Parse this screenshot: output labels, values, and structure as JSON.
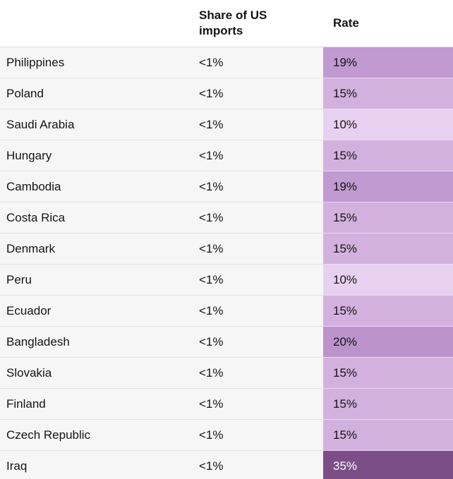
{
  "header": {
    "country_label": "",
    "share_label": "Share of US imports",
    "rate_label": "Rate"
  },
  "rows": [
    {
      "country": "Philippines",
      "share": "<1%",
      "rate": "19%"
    },
    {
      "country": "Poland",
      "share": "<1%",
      "rate": "15%"
    },
    {
      "country": "Saudi Arabia",
      "share": "<1%",
      "rate": "10%"
    },
    {
      "country": "Hungary",
      "share": "<1%",
      "rate": "15%"
    },
    {
      "country": "Cambodia",
      "share": "<1%",
      "rate": "19%"
    },
    {
      "country": "Costa Rica",
      "share": "<1%",
      "rate": "15%"
    },
    {
      "country": "Denmark",
      "share": "<1%",
      "rate": "15%"
    },
    {
      "country": "Peru",
      "share": "<1%",
      "rate": "10%"
    },
    {
      "country": "Ecuador",
      "share": "<1%",
      "rate": "15%"
    },
    {
      "country": "Bangladesh",
      "share": "<1%",
      "rate": "20%"
    },
    {
      "country": "Slovakia",
      "share": "<1%",
      "rate": "15%"
    },
    {
      "country": "Finland",
      "share": "<1%",
      "rate": "15%"
    },
    {
      "country": "Czech Republic",
      "share": "<1%",
      "rate": "15%"
    },
    {
      "country": "Iraq",
      "share": "<1%",
      "rate": "35%"
    }
  ],
  "colors": {
    "text": "#141414",
    "row_background": "#f6f6f6",
    "divider": "#e2e2e2",
    "rate_divider": "#ead9ef",
    "rate_scale": {
      "10%": "#e8d1f0",
      "15%": "#d3b1df",
      "19%": "#c19ad1",
      "20%": "#bc94cb",
      "35%": "#7b4e88"
    },
    "rate_text": {
      "default": "#141414",
      "35%": "#ffffff"
    }
  },
  "chart_data": {
    "type": "table",
    "title": "",
    "columns": [
      "",
      "Share of US imports",
      "Rate"
    ],
    "rows": [
      [
        "Philippines",
        "<1%",
        "19%"
      ],
      [
        "Poland",
        "<1%",
        "15%"
      ],
      [
        "Saudi Arabia",
        "<1%",
        "10%"
      ],
      [
        "Hungary",
        "<1%",
        "15%"
      ],
      [
        "Cambodia",
        "<1%",
        "19%"
      ],
      [
        "Costa Rica",
        "<1%",
        "15%"
      ],
      [
        "Denmark",
        "<1%",
        "15%"
      ],
      [
        "Peru",
        "<1%",
        "10%"
      ],
      [
        "Ecuador",
        "<1%",
        "15%"
      ],
      [
        "Bangladesh",
        "<1%",
        "20%"
      ],
      [
        "Slovakia",
        "<1%",
        "15%"
      ],
      [
        "Finland",
        "<1%",
        "15%"
      ],
      [
        "Czech Republic",
        "<1%",
        "15%"
      ],
      [
        "Iraq",
        "<1%",
        "35%"
      ]
    ],
    "rate_values_percent": [
      19,
      15,
      10,
      15,
      19,
      15,
      15,
      10,
      15,
      20,
      15,
      15,
      15,
      35
    ],
    "share_values": [
      "<1%",
      "<1%",
      "<1%",
      "<1%",
      "<1%",
      "<1%",
      "<1%",
      "<1%",
      "<1%",
      "<1%",
      "<1%",
      "<1%",
      "<1%",
      "<1%"
    ],
    "layout": "Rate column cells shaded purple, darker for higher rates; Iraq (35%) darkest with white text"
  }
}
